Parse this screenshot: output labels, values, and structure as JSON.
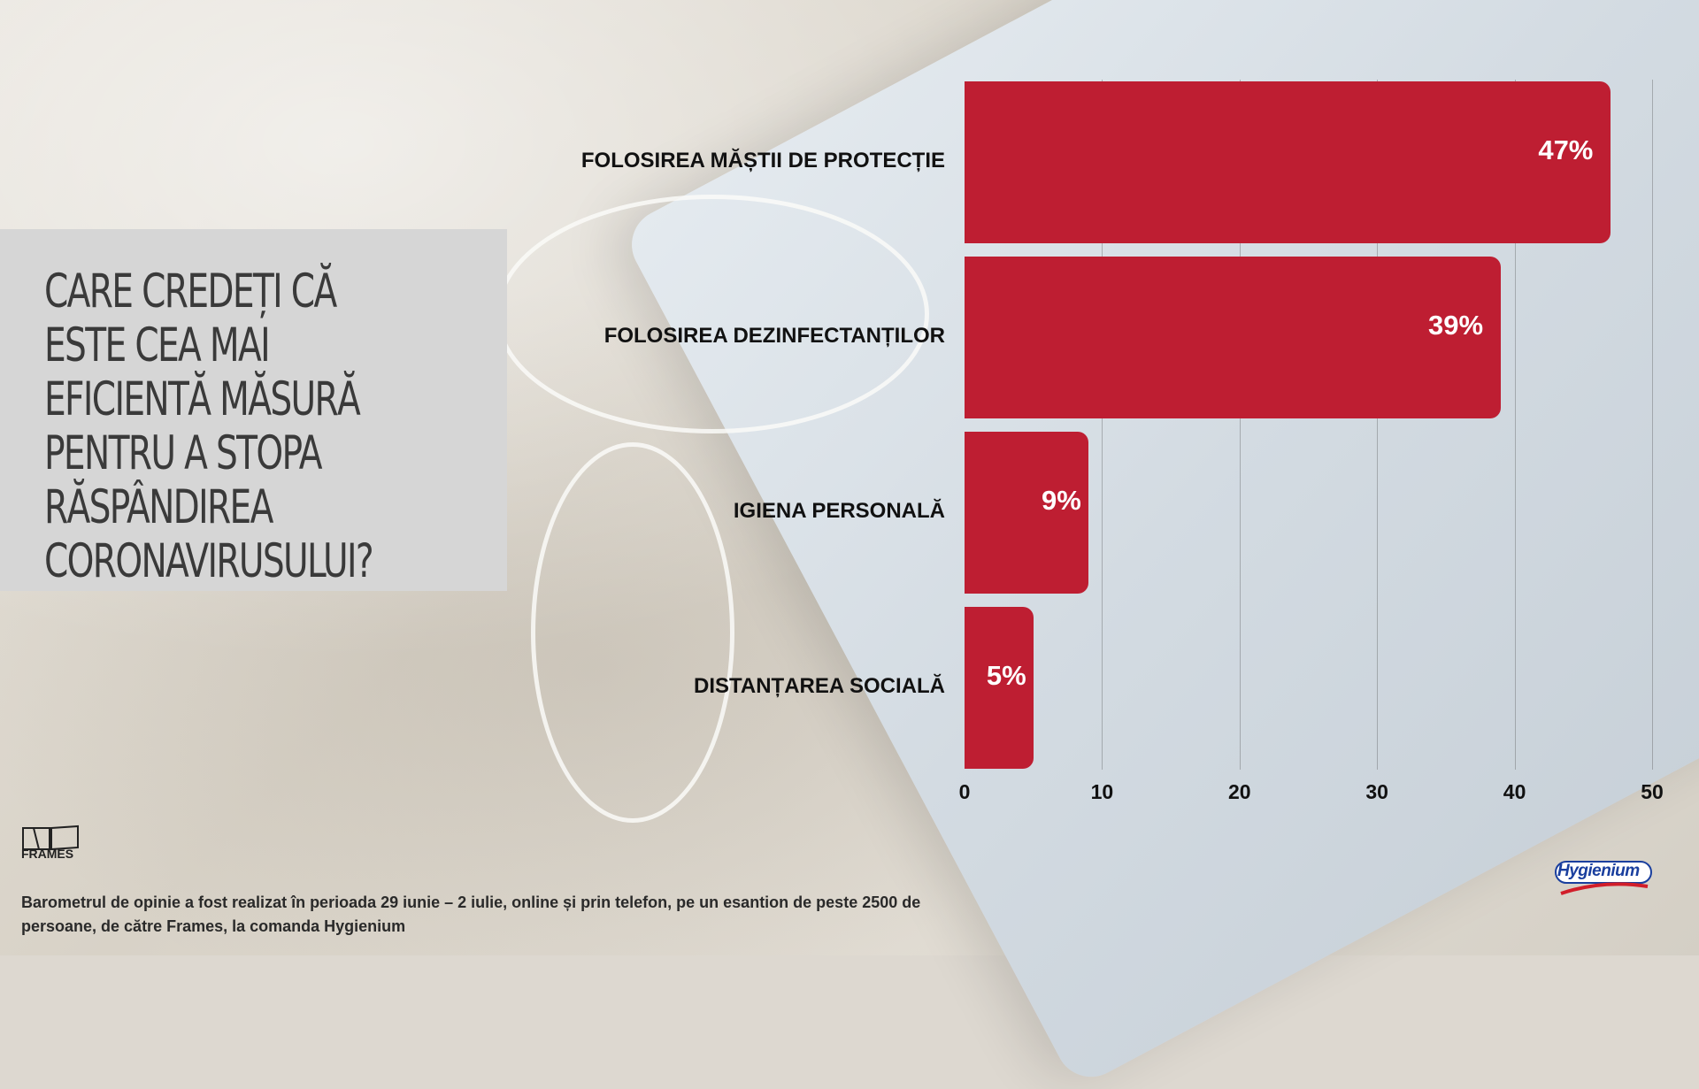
{
  "question": "Care credeți că este cea mai eficientă măsură pentru a stopa răspândirea coronavirusului?",
  "chart_data": {
    "type": "bar",
    "orientation": "horizontal",
    "categories": [
      "FOLOSIREA MĂȘTII DE PROTECȚIE",
      "FOLOSIREA DEZINFECTANȚILOR",
      "IGIENA PERSONALĂ",
      "DISTANȚAREA SOCIALĂ"
    ],
    "values": [
      47,
      39,
      9,
      5
    ],
    "value_labels": [
      "47%",
      "39%",
      "9%",
      "5%"
    ],
    "xlim": [
      0,
      50
    ],
    "xticks": [
      "0",
      "10",
      "20",
      "30",
      "40",
      "50"
    ],
    "grid": "vertical",
    "bar_color": "#be1e32"
  },
  "footnote": "Barometrul de opinie a fost realizat în perioada 29 iunie – 2 iulie, online și prin telefon, pe un esantion de peste 2500 de persoane, de către Frames, la comanda Hygienium",
  "logos": {
    "frames": "FRAMES",
    "hygienium": "Hygienium"
  }
}
